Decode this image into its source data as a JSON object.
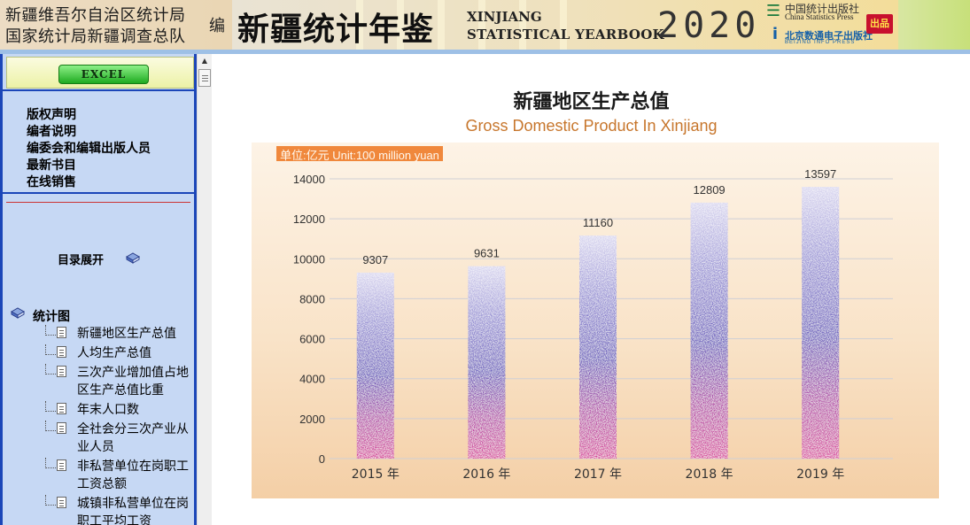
{
  "header": {
    "org_line1": "新疆维吾尔自治区统计局",
    "org_line2": "国家统计局新疆调查总队",
    "edit_char": "编",
    "yearbook_title_cn": "新疆统计年鉴",
    "yearbook_title_en1": "XINJIANG",
    "yearbook_title_en2": "STATISTICAL YEARBOOK",
    "year": "2020",
    "publisher1_cn": "中国统计出版社",
    "publisher1_en": "China Statistics Press",
    "publisher2_cn": "北京数通电子出版社",
    "publisher2_en": "BEIJING INFO PRESS",
    "badge": "出品"
  },
  "sidebar": {
    "excel_label": "EXCEL",
    "top_links": [
      "版权声明",
      "编者说明",
      "编委会和编辑出版人员",
      "最新书目",
      "在线销售"
    ],
    "toc_expand_label": "目录展开",
    "group_label": "统计图",
    "tree_items": [
      "新疆地区生产总值",
      "人均生产总值",
      "三次产业增加值占地区生产总值比重",
      "年末人口数",
      "全社会分三次产业从业人员",
      "非私营单位在岗职工工资总额",
      "城镇非私营单位在岗职工平均工资"
    ]
  },
  "colors": {
    "sidebar_bg": "#c6d8f4",
    "sidebar_border": "#1b46b8",
    "unit_tag": "#f0883c",
    "title_en": "#c7762c",
    "bar_top": "#7c78c6",
    "bar_bottom": "#d0449c"
  },
  "chart_data": {
    "type": "bar",
    "title": "新疆地区生产总值",
    "subtitle": "Gross Domestic Product In Xinjiang",
    "unit_label": "单位:亿元    Unit:100 million yuan",
    "categories": [
      "2015 年",
      "2016 年",
      "2017 年",
      "2018 年",
      "2019 年"
    ],
    "values": [
      9307,
      9631,
      11160,
      12809,
      13597
    ],
    "value_labels": [
      "9307",
      "9631",
      "11160",
      "12809",
      "13597"
    ],
    "yticks": [
      "0",
      "2000",
      "4000",
      "6000",
      "8000",
      "10000",
      "12000",
      "14000"
    ],
    "ylim": [
      0,
      14000
    ],
    "grid": true,
    "legend": "none"
  }
}
